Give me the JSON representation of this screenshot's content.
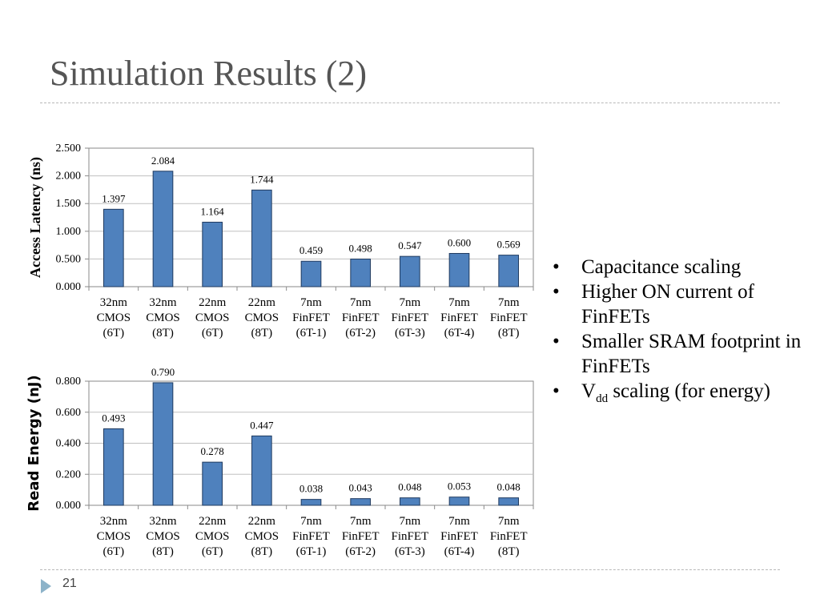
{
  "slide": {
    "title": "Simulation Results (2)",
    "page_number": "21"
  },
  "bullets": [
    {
      "text": "Capacitance scaling"
    },
    {
      "text": "Higher ON current of FinFETs"
    },
    {
      "text": "Smaller SRAM footprint in FinFETs"
    },
    {
      "pre": "V",
      "sub": "dd",
      "post": " scaling (for energy)"
    }
  ],
  "colors": {
    "bar": "#4f81bd",
    "bar_border": "#1f3a5f",
    "grid": "#c0c0c0",
    "title": "#555555",
    "accent_arrow": "#8db3c9"
  },
  "chart_data": [
    {
      "type": "bar",
      "title": "",
      "xlabel": "",
      "ylabel": "Access Latency (ns)",
      "ylim": [
        0,
        2.5
      ],
      "yticks": [
        "0.000",
        "0.500",
        "1.000",
        "1.500",
        "2.000",
        "2.500"
      ],
      "grid": true,
      "categories": [
        [
          "32nm",
          "CMOS",
          "(6T)"
        ],
        [
          "32nm",
          "CMOS",
          "(8T)"
        ],
        [
          "22nm",
          "CMOS",
          "(6T)"
        ],
        [
          "22nm",
          "CMOS",
          "(8T)"
        ],
        [
          "7nm",
          "FinFET",
          "(6T-1)"
        ],
        [
          "7nm",
          "FinFET",
          "(6T-2)"
        ],
        [
          "7nm",
          "FinFET",
          "(6T-3)"
        ],
        [
          "7nm",
          "FinFET",
          "(6T-4)"
        ],
        [
          "7nm",
          "FinFET",
          "(8T)"
        ]
      ],
      "values": [
        1.397,
        2.084,
        1.164,
        1.744,
        0.459,
        0.498,
        0.547,
        0.6,
        0.569
      ],
      "value_labels": [
        "1.397",
        "2.084",
        "1.164",
        "1.744",
        "0.459",
        "0.498",
        "0.547",
        "0.600",
        "0.569"
      ]
    },
    {
      "type": "bar",
      "title": "",
      "xlabel": "",
      "ylabel": "Read Energy (nJ)",
      "ylim": [
        0,
        0.8
      ],
      "yticks": [
        "0.000",
        "0.200",
        "0.400",
        "0.600",
        "0.800"
      ],
      "grid": true,
      "categories": [
        [
          "32nm",
          "CMOS",
          "(6T)"
        ],
        [
          "32nm",
          "CMOS",
          "(8T)"
        ],
        [
          "22nm",
          "CMOS",
          "(6T)"
        ],
        [
          "22nm",
          "CMOS",
          "(8T)"
        ],
        [
          "7nm",
          "FinFET",
          "(6T-1)"
        ],
        [
          "7nm",
          "FinFET",
          "(6T-2)"
        ],
        [
          "7nm",
          "FinFET",
          "(6T-3)"
        ],
        [
          "7nm",
          "FinFET",
          "(6T-4)"
        ],
        [
          "7nm",
          "FinFET",
          "(8T)"
        ]
      ],
      "values": [
        0.493,
        0.79,
        0.278,
        0.447,
        0.038,
        0.043,
        0.048,
        0.053,
        0.048
      ],
      "value_labels": [
        "0.493",
        "0.790",
        "0.278",
        "0.447",
        "0.038",
        "0.043",
        "0.048",
        "0.053",
        "0.048"
      ]
    }
  ]
}
